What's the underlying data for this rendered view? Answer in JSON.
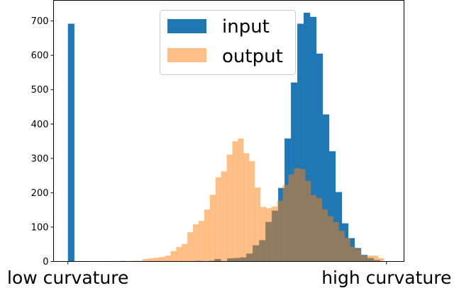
{
  "chart_data": {
    "type": "bar",
    "subtype": "overlaid-histogram",
    "title": "",
    "xlabel": "",
    "ylabel": "",
    "xlim": [
      -0.045,
      1.055
    ],
    "ylim": [
      0,
      760
    ],
    "x_tick_labels": [
      {
        "x": 0,
        "label": "low curvature"
      },
      {
        "x": 1,
        "label": "high curvature"
      }
    ],
    "y_ticks": [
      0,
      100,
      200,
      300,
      400,
      500,
      600,
      700
    ],
    "grid": false,
    "legend": {
      "placement": "top-center",
      "entries": [
        "input",
        "output"
      ]
    },
    "series": [
      {
        "name": "input",
        "color": "#1f77b4",
        "opacity": 1.0,
        "bin_start": 0,
        "bin_width": 0.02,
        "values": [
          692,
          0,
          0,
          0,
          0,
          0,
          0,
          0,
          0,
          0,
          0,
          0,
          0,
          0,
          0,
          0,
          0,
          0,
          0,
          0,
          2,
          0,
          2,
          7,
          0,
          9,
          10,
          12,
          23,
          47,
          62,
          115,
          148,
          214,
          358,
          521,
          692,
          724,
          712,
          605,
          428,
          321,
          202,
          111,
          68,
          39,
          19,
          10,
          4,
          0
        ]
      },
      {
        "name": "output",
        "color": "#ff7f0e",
        "opacity": 0.5,
        "bin_start": 0.164,
        "bin_width": 0.0176,
        "values": [
          2,
          0,
          2,
          2,
          7,
          9,
          11,
          13,
          17,
          30,
          42,
          51,
          85,
          108,
          118,
          151,
          194,
          245,
          262,
          311,
          350,
          358,
          315,
          292,
          215,
          159,
          155,
          160,
          176,
          223,
          253,
          272,
          269,
          235,
          193,
          185,
          152,
          132,
          115,
          89,
          68,
          43,
          35,
          17,
          17,
          17,
          10
        ]
      }
    ]
  }
}
